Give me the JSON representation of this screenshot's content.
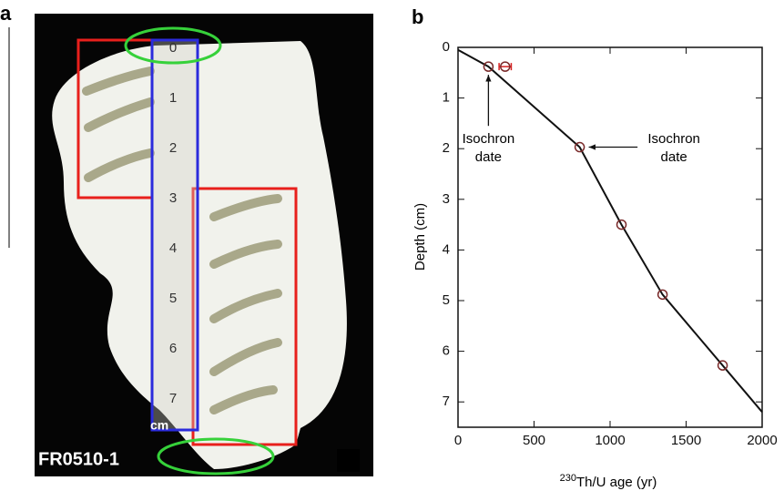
{
  "panel_a": {
    "label": "a",
    "sample": "FR0510-1",
    "ruler_unit": "cm",
    "ruler_marks": [
      "0",
      "1",
      "2",
      "3",
      "4",
      "5",
      "6",
      "7"
    ]
  },
  "chart_data": {
    "type": "scatter",
    "panel_label": "b",
    "xlabel": {
      "sup": "230",
      "text": "Th/U age (yr)"
    },
    "ylabel": "Depth (cm)",
    "xlim": [
      0,
      2000
    ],
    "ylim": [
      0,
      7.5
    ],
    "y_inverted": true,
    "xticks": [
      0,
      500,
      1000,
      1500,
      2000
    ],
    "yticks": [
      0,
      1,
      2,
      3,
      4,
      5,
      6,
      7
    ],
    "series": [
      {
        "x": [
          200,
          310,
          800,
          1075,
          1345,
          1740
        ],
        "y": [
          0.38,
          0.38,
          1.97,
          3.5,
          4.88,
          6.28
        ],
        "x_err": [
          null,
          40,
          null,
          null,
          null,
          null
        ],
        "color": "#7a2a2a",
        "err_color": "#d62020"
      }
    ],
    "line": {
      "x": [
        0,
        200,
        800,
        1075,
        1345,
        2000
      ],
      "y": [
        0.05,
        0.38,
        1.97,
        3.5,
        4.88,
        7.2
      ],
      "color": "#111"
    },
    "annotations": [
      {
        "lines": [
          "Isochron",
          "date"
        ],
        "x": 200,
        "y": 0.38,
        "tx": 200,
        "ty": 2.0
      },
      {
        "lines": [
          "Isochron",
          "date"
        ],
        "x": 800,
        "y": 1.97,
        "tx": 1420,
        "ty": 2.0
      }
    ]
  }
}
